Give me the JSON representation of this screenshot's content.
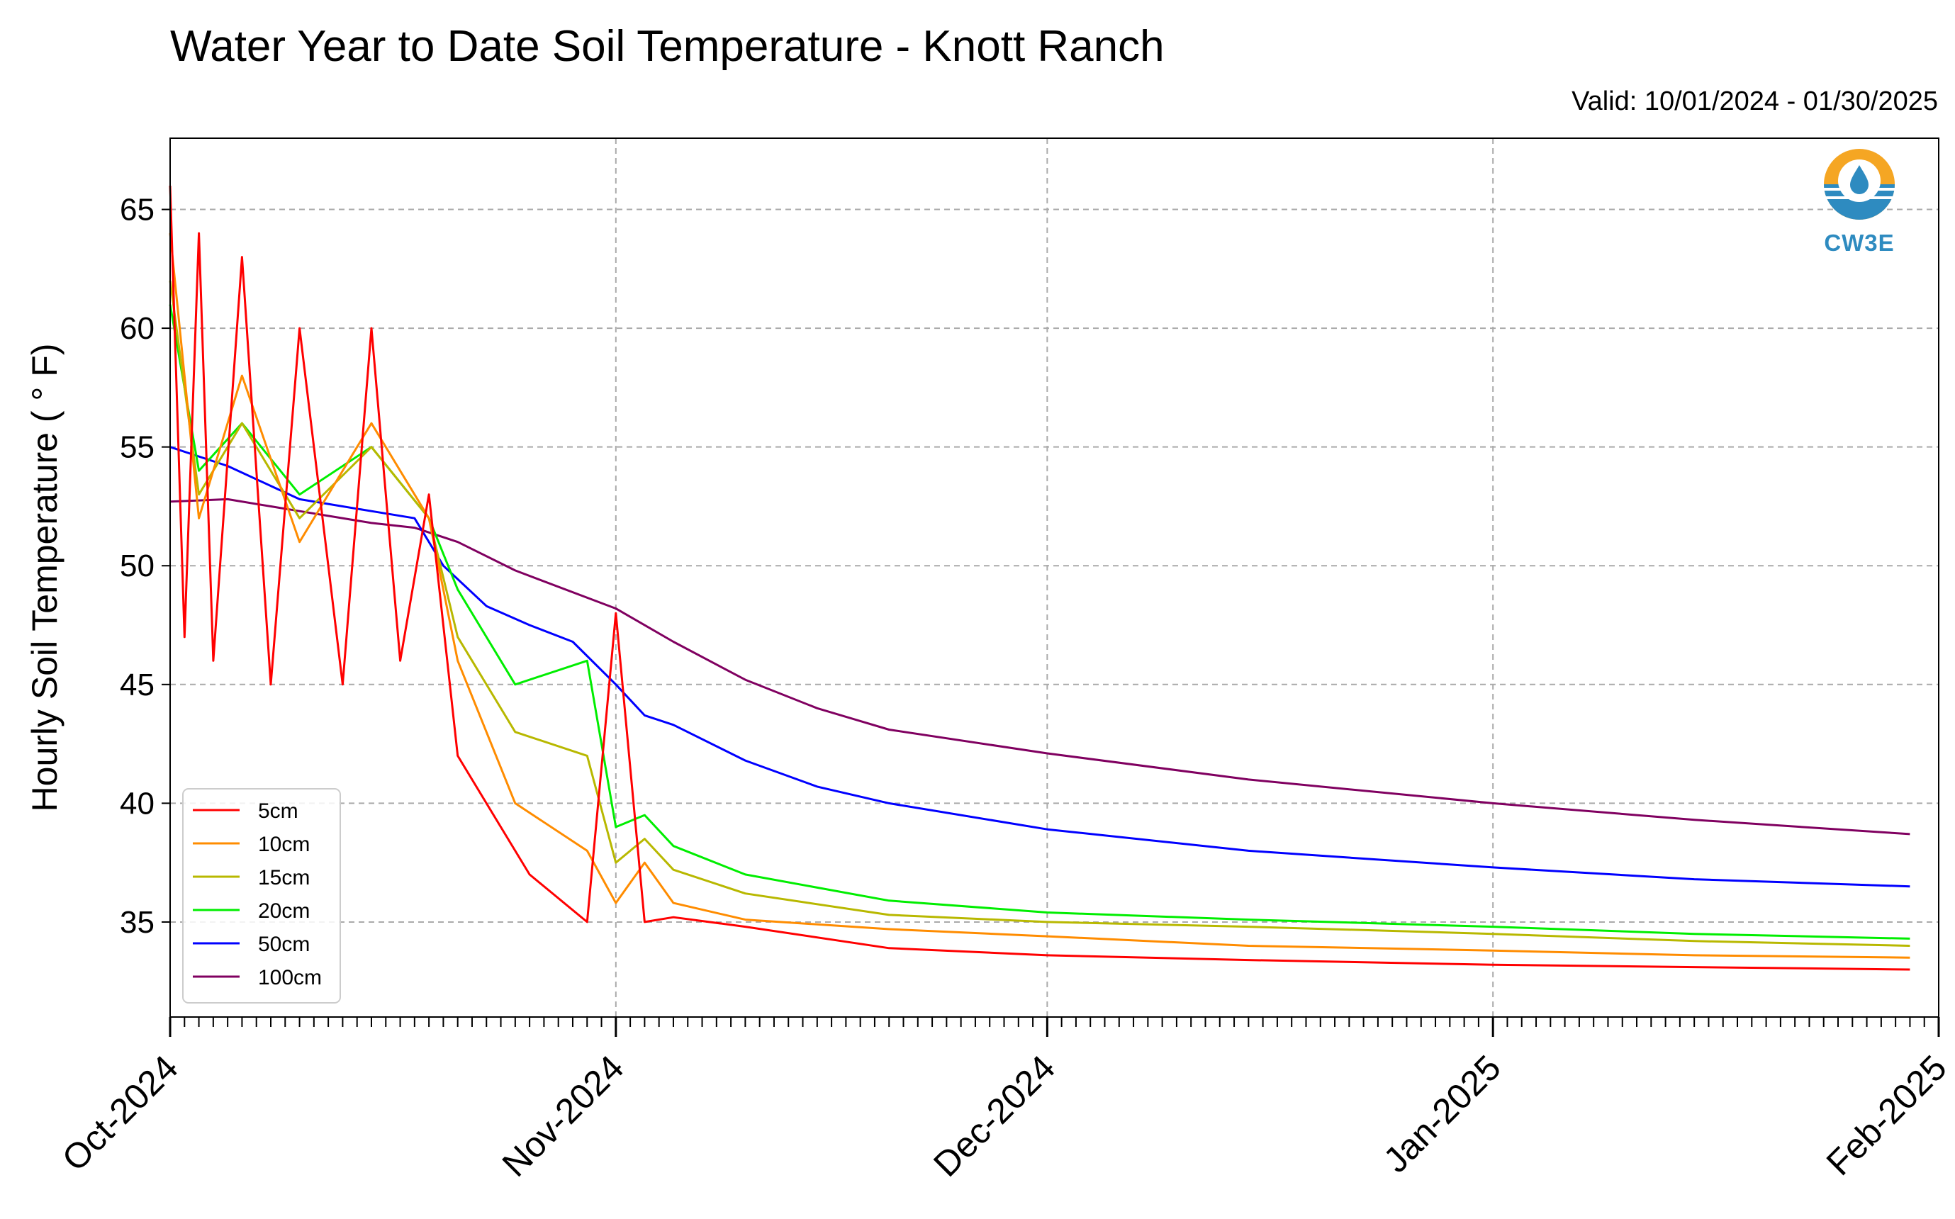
{
  "chart_data": {
    "type": "line",
    "title": "Water Year to Date Soil Temperature - Knott Ranch",
    "subtitle": "Valid: 10/01/2024 - 01/30/2025",
    "xlabel": "",
    "ylabel": "Hourly Soil Temperature ( ° F)",
    "xlim": [
      "2024-10-01",
      "2025-02-01"
    ],
    "ylim": [
      31,
      68
    ],
    "x_ticks": [
      "Oct-2024",
      "Nov-2024",
      "Dec-2024",
      "Jan-2025",
      "Feb-2025"
    ],
    "y_ticks": [
      35,
      40,
      45,
      50,
      55,
      60,
      65
    ],
    "grid": true,
    "legend_position": "bottom-left",
    "series": [
      {
        "name": "5cm",
        "color": "#ff0000",
        "x": [
          "2024-10-01",
          "2024-10-02",
          "2024-10-03",
          "2024-10-04",
          "2024-10-06",
          "2024-10-08",
          "2024-10-10",
          "2024-10-13",
          "2024-10-15",
          "2024-10-17",
          "2024-10-19",
          "2024-10-21",
          "2024-10-24",
          "2024-10-26",
          "2024-10-28",
          "2024-10-30",
          "2024-11-01",
          "2024-11-03",
          "2024-11-05",
          "2024-11-10",
          "2024-11-20",
          "2024-12-01",
          "2024-12-15",
          "2025-01-01",
          "2025-01-15",
          "2025-01-30"
        ],
        "y": [
          66,
          47,
          64,
          46,
          63,
          45,
          60,
          45,
          60,
          46,
          53,
          42,
          39,
          37,
          36,
          35,
          48,
          35,
          35.2,
          34.8,
          33.9,
          33.6,
          33.4,
          33.2,
          33.1,
          33.0
        ]
      },
      {
        "name": "10cm",
        "color": "#ff8c00",
        "x": [
          "2024-10-01",
          "2024-10-03",
          "2024-10-06",
          "2024-10-10",
          "2024-10-15",
          "2024-10-19",
          "2024-10-21",
          "2024-10-25",
          "2024-10-30",
          "2024-11-01",
          "2024-11-03",
          "2024-11-05",
          "2024-11-10",
          "2024-11-20",
          "2024-12-01",
          "2024-12-15",
          "2025-01-01",
          "2025-01-15",
          "2025-01-30"
        ],
        "y": [
          64,
          52,
          58,
          51,
          56,
          52,
          46,
          40,
          38,
          35.8,
          37.5,
          35.8,
          35.1,
          34.7,
          34.4,
          34.0,
          33.8,
          33.6,
          33.5
        ]
      },
      {
        "name": "15cm",
        "color": "#b8b800",
        "x": [
          "2024-10-01",
          "2024-10-03",
          "2024-10-06",
          "2024-10-10",
          "2024-10-15",
          "2024-10-19",
          "2024-10-21",
          "2024-10-25",
          "2024-10-30",
          "2024-11-01",
          "2024-11-03",
          "2024-11-05",
          "2024-11-10",
          "2024-11-20",
          "2024-12-01",
          "2024-12-15",
          "2025-01-01",
          "2025-01-15",
          "2025-01-30"
        ],
        "y": [
          62,
          53,
          56,
          52,
          55,
          52,
          47,
          43,
          42,
          37.5,
          38.5,
          37.2,
          36.2,
          35.3,
          35.0,
          34.8,
          34.5,
          34.2,
          34.0
        ]
      },
      {
        "name": "20cm",
        "color": "#00ee00",
        "x": [
          "2024-10-01",
          "2024-10-03",
          "2024-10-06",
          "2024-10-10",
          "2024-10-15",
          "2024-10-19",
          "2024-10-21",
          "2024-10-25",
          "2024-10-30",
          "2024-11-01",
          "2024-11-03",
          "2024-11-05",
          "2024-11-10",
          "2024-11-20",
          "2024-12-01",
          "2024-12-15",
          "2025-01-01",
          "2025-01-15",
          "2025-01-30"
        ],
        "y": [
          61,
          54,
          56,
          53,
          55,
          52,
          49,
          45,
          46,
          39,
          39.5,
          38.2,
          37.0,
          35.9,
          35.4,
          35.1,
          34.8,
          34.5,
          34.3
        ]
      },
      {
        "name": "50cm",
        "color": "#0000ff",
        "x": [
          "2024-10-01",
          "2024-10-05",
          "2024-10-10",
          "2024-10-15",
          "2024-10-18",
          "2024-10-20",
          "2024-10-23",
          "2024-10-26",
          "2024-10-29",
          "2024-11-01",
          "2024-11-03",
          "2024-11-05",
          "2024-11-10",
          "2024-11-15",
          "2024-11-20",
          "2024-12-01",
          "2024-12-15",
          "2025-01-01",
          "2025-01-15",
          "2025-01-30"
        ],
        "y": [
          55,
          54.2,
          52.8,
          52.3,
          52.0,
          50,
          48.3,
          47.5,
          46.8,
          45.0,
          43.7,
          43.3,
          41.8,
          40.7,
          40.0,
          38.9,
          38.0,
          37.3,
          36.8,
          36.5
        ]
      },
      {
        "name": "100cm",
        "color": "#800060",
        "x": [
          "2024-10-01",
          "2024-10-05",
          "2024-10-10",
          "2024-10-15",
          "2024-10-18",
          "2024-10-21",
          "2024-10-25",
          "2024-11-01",
          "2024-11-05",
          "2024-11-10",
          "2024-11-15",
          "2024-11-20",
          "2024-12-01",
          "2024-12-15",
          "2025-01-01",
          "2025-01-15",
          "2025-01-30"
        ],
        "y": [
          52.7,
          52.8,
          52.3,
          51.8,
          51.6,
          51.0,
          49.8,
          48.2,
          46.8,
          45.2,
          44.0,
          43.1,
          42.1,
          41.0,
          40.0,
          39.3,
          38.7
        ]
      }
    ]
  },
  "logo": {
    "text": "CW3E",
    "icon": "water-drop-logo-icon"
  }
}
